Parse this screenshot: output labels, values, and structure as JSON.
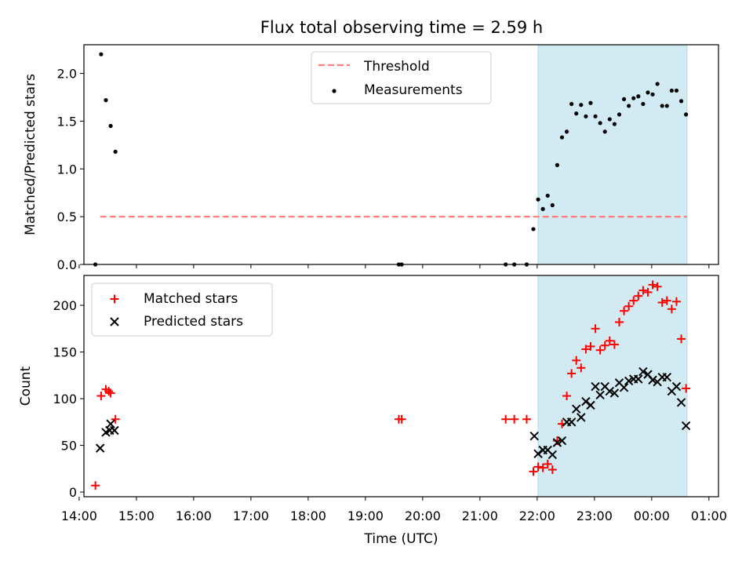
{
  "title": "Flux total observing time = 2.59 h",
  "colors": {
    "threshold": "#ff7f7f",
    "matched": "#ff0000",
    "predicted": "#000000",
    "span": "#add8e6",
    "measurement": "#000000"
  },
  "chart_data": [
    {
      "type": "scatter",
      "ylabel": "Matched/Predicted stars",
      "xlim": [
        "14:05",
        "01:10"
      ],
      "ylim": [
        0,
        2.3
      ],
      "yticks": [
        "0.0",
        "0.5",
        "1.0",
        "1.5",
        "2.0"
      ],
      "grid": false,
      "legend_position": "top-center",
      "highlight_span": [
        "22:01",
        "00:37"
      ],
      "threshold": {
        "name": "Threshold",
        "y": 0.5,
        "x_range": [
          "14:22",
          "00:37"
        ],
        "style": "dashed"
      },
      "series": [
        {
          "name": "Measurements",
          "points": [
            [
              "14:17",
              0.0
            ],
            [
              "14:23",
              2.2
            ],
            [
              "14:28",
              1.72
            ],
            [
              "14:33",
              1.45
            ],
            [
              "14:38",
              1.18
            ],
            [
              "19:35",
              0.0
            ],
            [
              "19:38",
              0.0
            ],
            [
              "21:27",
              0.0
            ],
            [
              "21:36",
              0.0
            ],
            [
              "21:49",
              0.0
            ],
            [
              "21:56",
              0.37
            ],
            [
              "22:01",
              0.68
            ],
            [
              "22:06",
              0.58
            ],
            [
              "22:11",
              0.72
            ],
            [
              "22:16",
              0.62
            ],
            [
              "22:21",
              1.04
            ],
            [
              "22:26",
              1.33
            ],
            [
              "22:31",
              1.39
            ],
            [
              "22:36",
              1.68
            ],
            [
              "22:41",
              1.58
            ],
            [
              "22:46",
              1.67
            ],
            [
              "22:51",
              1.55
            ],
            [
              "22:56",
              1.69
            ],
            [
              "23:01",
              1.55
            ],
            [
              "23:06",
              1.48
            ],
            [
              "23:11",
              1.39
            ],
            [
              "23:16",
              1.52
            ],
            [
              "23:21",
              1.47
            ],
            [
              "23:26",
              1.57
            ],
            [
              "23:31",
              1.73
            ],
            [
              "23:36",
              1.66
            ],
            [
              "23:41",
              1.74
            ],
            [
              "23:46",
              1.76
            ],
            [
              "23:51",
              1.68
            ],
            [
              "23:56",
              1.8
            ],
            [
              "00:01",
              1.78
            ],
            [
              "00:06",
              1.89
            ],
            [
              "00:11",
              1.66
            ],
            [
              "00:16",
              1.66
            ],
            [
              "00:21",
              1.82
            ],
            [
              "00:26",
              1.82
            ],
            [
              "00:31",
              1.71
            ],
            [
              "00:36",
              1.57
            ]
          ]
        }
      ]
    },
    {
      "type": "scatter",
      "xlabel": "Time (UTC)",
      "ylabel": "Count",
      "xlim": [
        "14:05",
        "01:10"
      ],
      "ylim": [
        -5,
        232
      ],
      "xticks": [
        "14:00",
        "15:00",
        "16:00",
        "17:00",
        "18:00",
        "19:00",
        "20:00",
        "21:00",
        "22:00",
        "23:00",
        "00:00",
        "01:00"
      ],
      "yticks": [
        "0",
        "50",
        "100",
        "150",
        "200"
      ],
      "grid": false,
      "legend_position": "top-left",
      "highlight_span": [
        "22:01",
        "00:37"
      ],
      "series": [
        {
          "name": "Matched stars",
          "marker": "plus",
          "points": [
            [
              "14:17",
              7
            ],
            [
              "14:23",
              103
            ],
            [
              "14:28",
              110
            ],
            [
              "14:31",
              108
            ],
            [
              "14:33",
              106
            ],
            [
              "14:38",
              78
            ],
            [
              "19:35",
              78
            ],
            [
              "19:38",
              78
            ],
            [
              "21:27",
              78
            ],
            [
              "21:36",
              78
            ],
            [
              "21:49",
              78
            ],
            [
              "21:56",
              22
            ],
            [
              "22:01",
              27
            ],
            [
              "22:06",
              26
            ],
            [
              "22:11",
              30
            ],
            [
              "22:16",
              24
            ],
            [
              "22:21",
              55
            ],
            [
              "22:26",
              73
            ],
            [
              "22:31",
              103
            ],
            [
              "22:36",
              127
            ],
            [
              "22:41",
              141
            ],
            [
              "22:46",
              133
            ],
            [
              "22:51",
              153
            ],
            [
              "22:56",
              156
            ],
            [
              "23:01",
              175
            ],
            [
              "23:06",
              152
            ],
            [
              "23:11",
              157
            ],
            [
              "23:16",
              162
            ],
            [
              "23:21",
              158
            ],
            [
              "23:26",
              182
            ],
            [
              "23:31",
              194
            ],
            [
              "23:36",
              199
            ],
            [
              "23:41",
              205
            ],
            [
              "23:46",
              210
            ],
            [
              "23:51",
              216
            ],
            [
              "23:56",
              214
            ],
            [
              "00:01",
              222
            ],
            [
              "00:06",
              220
            ],
            [
              "00:11",
              203
            ],
            [
              "00:16",
              205
            ],
            [
              "00:21",
              196
            ],
            [
              "00:26",
              204
            ],
            [
              "00:31",
              164
            ],
            [
              "00:36",
              111
            ]
          ]
        },
        {
          "name": "Predicted stars",
          "marker": "x",
          "points": [
            [
              "14:22",
              47
            ],
            [
              "14:28",
              64
            ],
            [
              "14:32",
              66
            ],
            [
              "14:33",
              73
            ],
            [
              "14:37",
              66
            ],
            [
              "21:57",
              60
            ],
            [
              "22:01",
              41
            ],
            [
              "22:06",
              45
            ],
            [
              "22:11",
              45
            ],
            [
              "22:16",
              40
            ],
            [
              "22:21",
              53
            ],
            [
              "22:26",
              55
            ],
            [
              "22:31",
              75
            ],
            [
              "22:36",
              75
            ],
            [
              "22:41",
              89
            ],
            [
              "22:46",
              80
            ],
            [
              "22:51",
              97
            ],
            [
              "22:56",
              93
            ],
            [
              "23:01",
              113
            ],
            [
              "23:06",
              104
            ],
            [
              "23:11",
              113
            ],
            [
              "23:16",
              108
            ],
            [
              "23:21",
              106
            ],
            [
              "23:26",
              117
            ],
            [
              "23:31",
              112
            ],
            [
              "23:36",
              119
            ],
            [
              "23:41",
              121
            ],
            [
              "23:46",
              121
            ],
            [
              "23:51",
              129
            ],
            [
              "23:56",
              126
            ],
            [
              "00:01",
              120
            ],
            [
              "00:06",
              118
            ],
            [
              "00:11",
              123
            ],
            [
              "00:16",
              123
            ],
            [
              "00:21",
              108
            ],
            [
              "00:26",
              113
            ],
            [
              "00:31",
              96
            ],
            [
              "00:36",
              71
            ]
          ]
        }
      ]
    }
  ]
}
